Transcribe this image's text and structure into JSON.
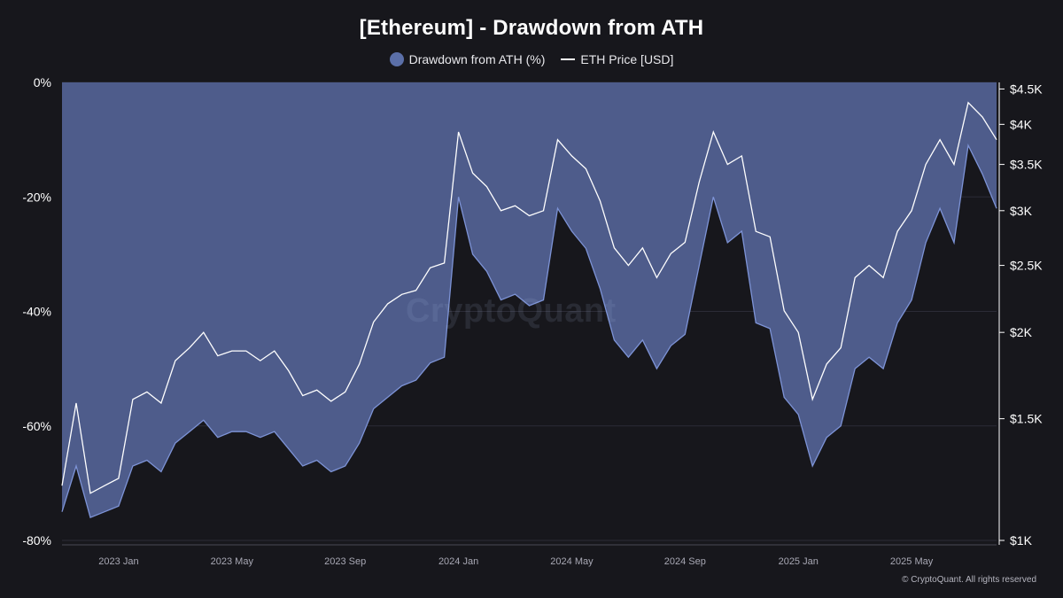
{
  "chart_data": {
    "type": "area",
    "title": "[Ethereum] - Drawdown from ATH",
    "legend": [
      {
        "name": "Drawdown from ATH (%)",
        "marker": "dot",
        "color": "#5b6fa8"
      },
      {
        "name": "ETH Price [USD]",
        "marker": "line",
        "color": "#ffffff"
      }
    ],
    "x_ticks": [
      "2023 Jan",
      "2023 May",
      "2023 Sep",
      "2024 Jan",
      "2024 May",
      "2024 Sep",
      "2025 Jan",
      "2025 May"
    ],
    "x_range": [
      "2022-11",
      "2025-08"
    ],
    "y_left": {
      "ticks": [
        "0%",
        "-20%",
        "-40%",
        "-60%",
        "-80%"
      ],
      "values": [
        0,
        -20,
        -40,
        -60,
        -80
      ],
      "range": [
        -80,
        0
      ]
    },
    "y_right": {
      "ticks": [
        "$4.5K",
        "$4K",
        "$3.5K",
        "$3K",
        "$2.5K",
        "$2K",
        "$1.5K",
        "$1K"
      ],
      "values": [
        4500,
        4000,
        3500,
        3000,
        2500,
        2000,
        1500,
        1000
      ],
      "range": [
        1000,
        4600
      ],
      "scale": "log"
    },
    "series": [
      {
        "name": "ETH Price [USD]",
        "x_month_index": [
          0,
          0.5,
          1,
          1.5,
          2,
          2.5,
          3,
          3.5,
          4,
          4.5,
          5,
          5.5,
          6,
          6.5,
          7,
          7.5,
          8,
          8.5,
          9,
          9.5,
          10,
          10.5,
          11,
          11.5,
          12,
          12.5,
          13,
          13.5,
          14,
          14.5,
          15,
          15.5,
          16,
          16.5,
          17,
          17.5,
          18,
          18.5,
          19,
          19.5,
          20,
          20.5,
          21,
          21.5,
          22,
          22.5,
          23,
          23.5,
          24,
          24.5,
          25,
          25.5,
          26,
          26.5,
          27,
          27.5,
          28,
          28.5,
          29,
          29.5,
          30,
          30.5,
          31,
          31.5,
          32,
          32.5,
          33
        ],
        "values": [
          1200,
          1580,
          1170,
          1200,
          1230,
          1600,
          1640,
          1580,
          1820,
          1900,
          2000,
          1850,
          1880,
          1880,
          1820,
          1880,
          1760,
          1620,
          1650,
          1590,
          1640,
          1800,
          2070,
          2200,
          2270,
          2300,
          2480,
          2520,
          3900,
          3400,
          3250,
          3000,
          3050,
          2950,
          3000,
          3800,
          3600,
          3450,
          3100,
          2650,
          2500,
          2650,
          2400,
          2600,
          2700,
          3300,
          3900,
          3500,
          3600,
          2800,
          2750,
          2150,
          2000,
          1600,
          1800,
          1900,
          2400,
          2500,
          2400,
          2800,
          3000,
          3500,
          3800,
          3500,
          4300,
          4100,
          3800
        ]
      },
      {
        "name": "Drawdown from ATH (%)",
        "x_month_index": [
          0,
          0.5,
          1,
          1.5,
          2,
          2.5,
          3,
          3.5,
          4,
          4.5,
          5,
          5.5,
          6,
          6.5,
          7,
          7.5,
          8,
          8.5,
          9,
          9.5,
          10,
          10.5,
          11,
          11.5,
          12,
          12.5,
          13,
          13.5,
          14,
          14.5,
          15,
          15.5,
          16,
          16.5,
          17,
          17.5,
          18,
          18.5,
          19,
          19.5,
          20,
          20.5,
          21,
          21.5,
          22,
          22.5,
          23,
          23.5,
          24,
          24.5,
          25,
          25.5,
          26,
          26.5,
          27,
          27.5,
          28,
          28.5,
          29,
          29.5,
          30,
          30.5,
          31,
          31.5,
          32,
          32.5,
          33
        ],
        "values": [
          -75,
          -67,
          -76,
          -75,
          -74,
          -67,
          -66,
          -68,
          -63,
          -61,
          -59,
          -62,
          -61,
          -61,
          -62,
          -61,
          -64,
          -67,
          -66,
          -68,
          -67,
          -63,
          -57,
          -55,
          -53,
          -52,
          -49,
          -48,
          -20,
          -30,
          -33,
          -38,
          -37,
          -39,
          -38,
          -22,
          -26,
          -29,
          -36,
          -45,
          -48,
          -45,
          -50,
          -46,
          -44,
          -32,
          -20,
          -28,
          -26,
          -42,
          -43,
          -55,
          -58,
          -67,
          -62,
          -60,
          -50,
          -48,
          -50,
          -42,
          -38,
          -28,
          -22,
          -28,
          -11,
          -16,
          -22
        ]
      }
    ]
  },
  "watermark": "CryptoQuant",
  "copyright": "© CryptoQuant. All rights reserved"
}
